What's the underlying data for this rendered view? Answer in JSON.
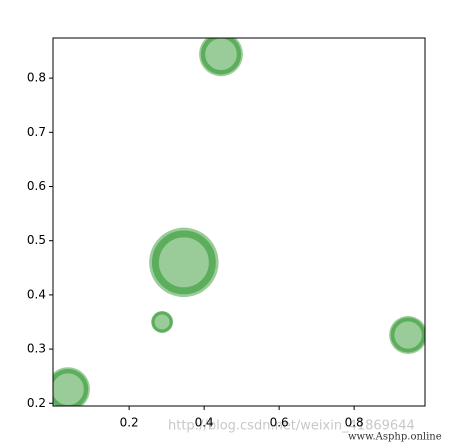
{
  "chart_data": {
    "type": "scatter",
    "x": [
      0.037,
      0.445,
      0.346,
      0.288,
      0.944
    ],
    "values": [
      0.226,
      0.844,
      0.46,
      0.35,
      0.326
    ],
    "sizes": [
      1000,
      1000,
      2500,
      250,
      750
    ],
    "color": "green",
    "alpha": 0.4,
    "xlim": [
      -0.003,
      0.989
    ],
    "ylim": [
      0.195,
      0.874
    ],
    "xticks": [
      0.2,
      0.4,
      0.6,
      0.8
    ],
    "yticks": [
      0.2,
      0.3,
      0.4,
      0.5,
      0.6,
      0.7,
      0.8
    ],
    "grid": false,
    "watermarks": [
      "http://blog.csdn.net/weixin_41869644",
      "www.Asphp.online"
    ]
  }
}
